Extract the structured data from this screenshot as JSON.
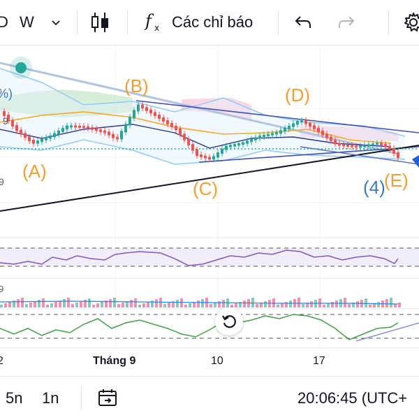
{
  "toolbar": {
    "interval_partial": "D",
    "interval": "W",
    "indicators_label": "Các chỉ báo"
  },
  "wave_labels": {
    "A": "(A)",
    "B": "(B)",
    "C": "(C)",
    "D": "(D)",
    "E": "(E)",
    "four": "(4)"
  },
  "left_edge_labels": {
    "pct": "%)",
    "nine_top": "9",
    "nine_bottom": "9"
  },
  "time_axis": {
    "left_partial": "2",
    "month": "Tháng 9",
    "t10": "10",
    "t17": "17"
  },
  "bottombar": {
    "range_5n": "5n",
    "range_1n": "1n",
    "clock": "20:06:45 (UTC+"
  },
  "colors": {
    "wave_label": "#f0a030",
    "wave_label_blue": "#3a7bbf",
    "up_candle": "#26a69a",
    "down_candle": "#ef5350",
    "rsi_line": "#7e57c2",
    "stoch_line": "#43a047"
  },
  "icons": {
    "chart_type": "candlestick-icon",
    "indicators": "fx-icon",
    "undo": "undo-icon",
    "redo": "redo-icon",
    "settings": "gear-icon",
    "reset": "reset-icon",
    "date_range": "calendar-goto-icon"
  }
}
